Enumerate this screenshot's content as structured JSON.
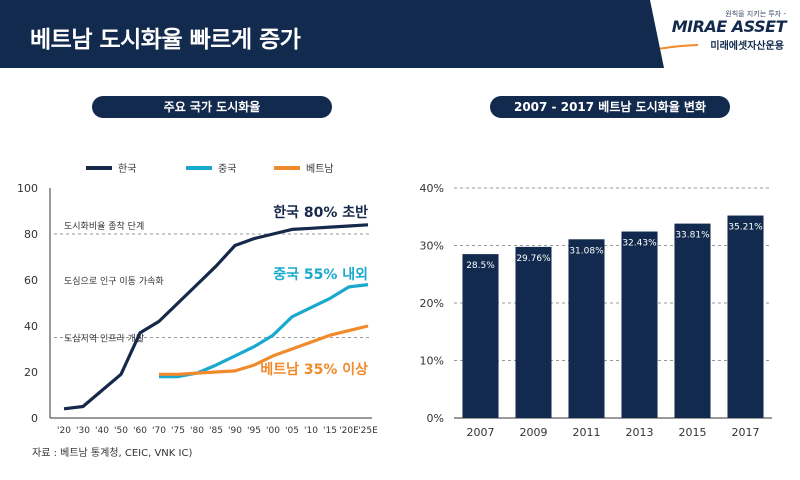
{
  "header": {
    "title": "베트남 도시화율 빠르게 증가",
    "logo_slogan": "원칙을 지키는 투자 -",
    "logo_main": "MIRAE ASSET",
    "logo_sub": "미래에셋자산운용"
  },
  "colors": {
    "navy": "#122a4d",
    "korea": "#16294a",
    "china": "#19a9cf",
    "vietnam": "#f08a2b"
  },
  "source": "자료 : 베트남 통계청, CEIC, VNK IC)",
  "chart_data": [
    {
      "type": "line",
      "title": "주요 국가 도시화율",
      "x": [
        "'20",
        "'30",
        "'40",
        "'50",
        "'60",
        "'70",
        "'75",
        "'80",
        "'85",
        "'90",
        "'95",
        "'00",
        "'05",
        "'10",
        "'15",
        "'20E",
        "'25E"
      ],
      "ylim": [
        0,
        100
      ],
      "yticks": [
        0,
        20,
        40,
        60,
        80,
        100
      ],
      "series": [
        {
          "name": "한국",
          "color": "#16294a",
          "values": [
            4,
            5,
            12,
            19,
            37,
            42,
            50,
            58,
            66,
            75,
            78,
            80,
            82,
            82.5,
            83,
            83.5,
            84
          ]
        },
        {
          "name": "중국",
          "color": "#19a9cf",
          "values": [
            null,
            null,
            null,
            null,
            null,
            18,
            18,
            19.5,
            23,
            27,
            31,
            36,
            44,
            48,
            52,
            57,
            58
          ]
        },
        {
          "name": "베트남",
          "color": "#f08a2b",
          "values": [
            null,
            null,
            null,
            null,
            null,
            19,
            19,
            19.5,
            20,
            20.5,
            23,
            27,
            30,
            33,
            36,
            38,
            40
          ]
        }
      ],
      "annotations": {
        "korea": "한국 80% 초반",
        "china": "중국 55% 내외",
        "vietnam": "베트남 35% 이상"
      },
      "stages": [
        {
          "label": "도시화비율 종착 단계",
          "value": 84
        },
        {
          "label": "도심으로 인구 이동 가속화",
          "value": 60
        },
        {
          "label": "도심지역 인프라 개발",
          "value": 35
        }
      ],
      "stage_lines": [
        80,
        35
      ]
    },
    {
      "type": "bar",
      "title": "2007 - 2017 베트남 도시화율 변화",
      "categories": [
        "2007",
        "2009",
        "2011",
        "2013",
        "2015",
        "2017"
      ],
      "values": [
        28.5,
        29.76,
        31.08,
        32.43,
        33.81,
        35.21
      ],
      "labels": [
        "28.5%",
        "29.76%",
        "31.08%",
        "32.43%",
        "33.81%",
        "35.21%"
      ],
      "ylim": [
        0,
        40
      ],
      "yticks": [
        0,
        10,
        20,
        30,
        40
      ],
      "ytick_labels": [
        "0%",
        "10%",
        "20%",
        "30%",
        "40%"
      ],
      "color": "#122a4d"
    }
  ]
}
